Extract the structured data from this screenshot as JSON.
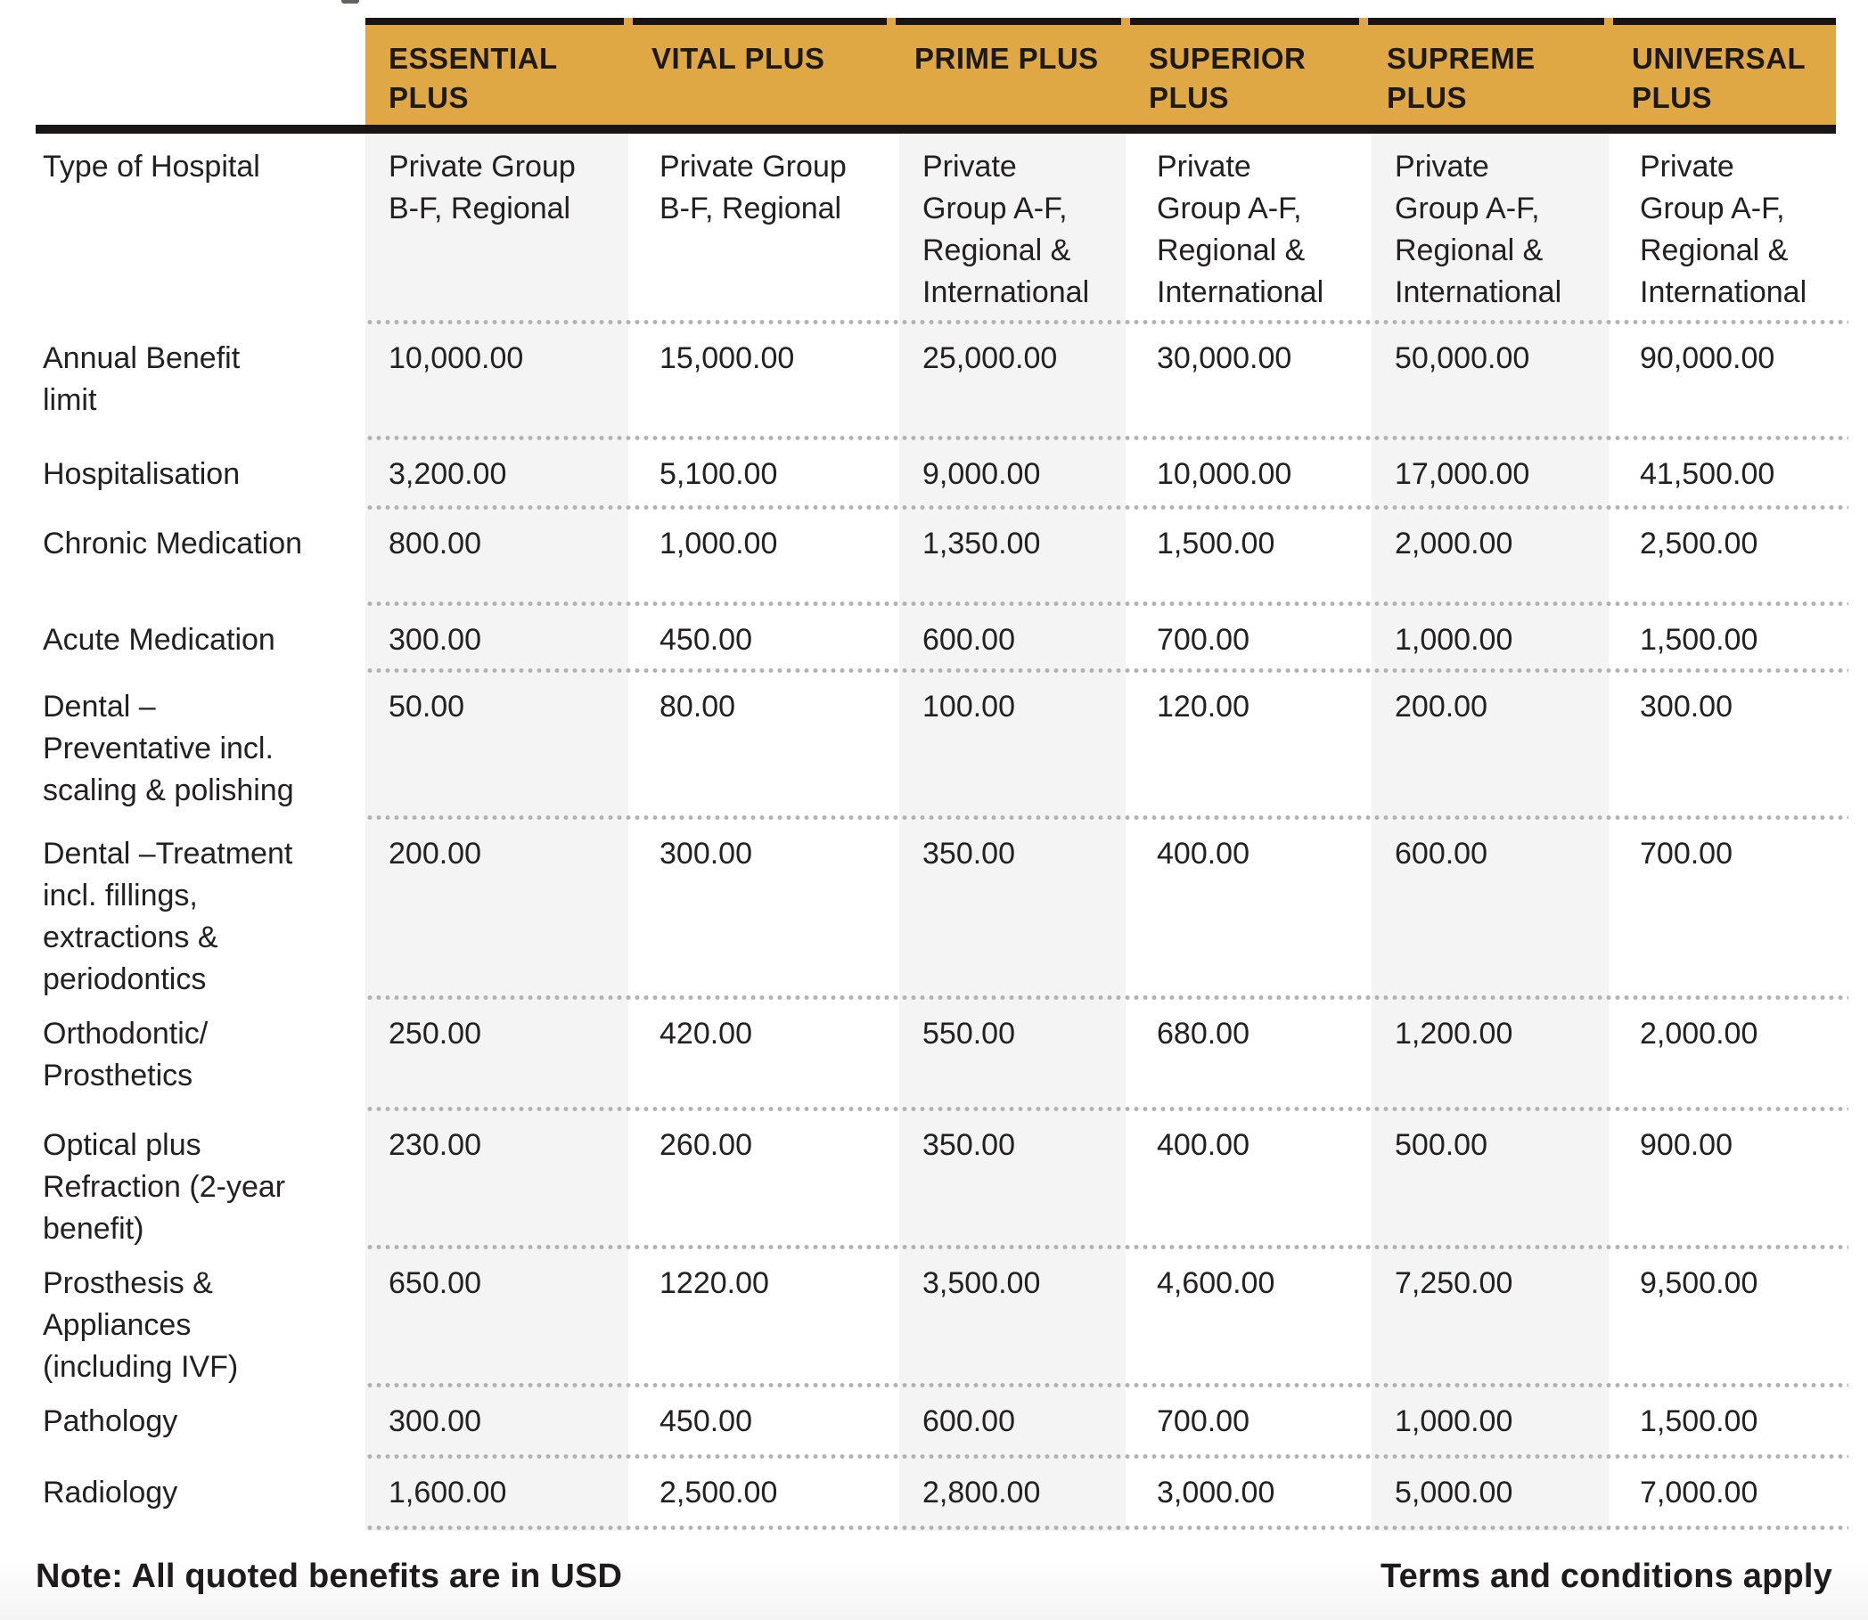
{
  "header": {
    "columns": [
      "ESSENTIAL\nPLUS",
      "VITAL PLUS",
      "PRIME PLUS",
      "SUPERIOR\nPLUS",
      "SUPREME\nPLUS",
      "UNIVERSAL\nPLUS"
    ]
  },
  "rows": [
    {
      "label": "Type of Hospital",
      "values": [
        "Private Group\nB-F, Regional",
        "Private Group\nB-F, Regional",
        "Private\nGroup A-F,\nRegional &\nInternational",
        "Private\nGroup A-F,\nRegional &\nInternational",
        "Private\nGroup A-F,\nRegional &\nInternational",
        "Private\nGroup A-F,\nRegional &\nInternational"
      ]
    },
    {
      "label": "Annual Benefit\nlimit",
      "values": [
        "10,000.00",
        "15,000.00",
        "25,000.00",
        "30,000.00",
        "50,000.00",
        "90,000.00"
      ]
    },
    {
      "label": "Hospitalisation",
      "values": [
        "3,200.00",
        "5,100.00",
        "9,000.00",
        "10,000.00",
        "17,000.00",
        "41,500.00"
      ]
    },
    {
      "label": "Chronic Medication",
      "values": [
        "800.00",
        "1,000.00",
        "1,350.00",
        "1,500.00",
        "2,000.00",
        "2,500.00"
      ]
    },
    {
      "label": "Acute Medication",
      "values": [
        "300.00",
        "450.00",
        "600.00",
        "700.00",
        "1,000.00",
        "1,500.00"
      ]
    },
    {
      "label": "Dental –\nPreventative incl.\nscaling & polishing",
      "values": [
        "50.00",
        "80.00",
        "100.00",
        "120.00",
        "200.00",
        "300.00"
      ]
    },
    {
      "label": "Dental –Treatment\nincl. fillings,\nextractions &\nperiodontics",
      "values": [
        "200.00",
        "300.00",
        "350.00",
        "400.00",
        "600.00",
        "700.00"
      ]
    },
    {
      "label": "Orthodontic/\nProsthetics",
      "values": [
        "250.00",
        "420.00",
        "550.00",
        "680.00",
        "1,200.00",
        "2,000.00"
      ]
    },
    {
      "label": "Optical plus\nRefraction (2-year\nbenefit)",
      "values": [
        "230.00",
        "260.00",
        "350.00",
        "400.00",
        "500.00",
        "900.00"
      ]
    },
    {
      "label": "Prosthesis &\nAppliances\n(including IVF)",
      "values": [
        "650.00",
        "1220.00",
        "3,500.00",
        "4,600.00",
        "7,250.00",
        "9,500.00"
      ]
    },
    {
      "label": "Pathology",
      "values": [
        "300.00",
        "450.00",
        "600.00",
        "700.00",
        "1,000.00",
        "1,500.00"
      ]
    },
    {
      "label": "Radiology",
      "values": [
        "1,600.00",
        "2,500.00",
        "2,800.00",
        "3,000.00",
        "5,000.00",
        "7,000.00"
      ]
    }
  ],
  "footer": {
    "note": "Note: All quoted benefits are in USD",
    "terms": "Terms and conditions apply"
  },
  "colors": {
    "header_gold": "#DFA845",
    "bar_black": "#181514",
    "text": "#232021",
    "shaded_column": "#F4F4F4",
    "dotted_separator": "#B3B1B2"
  }
}
